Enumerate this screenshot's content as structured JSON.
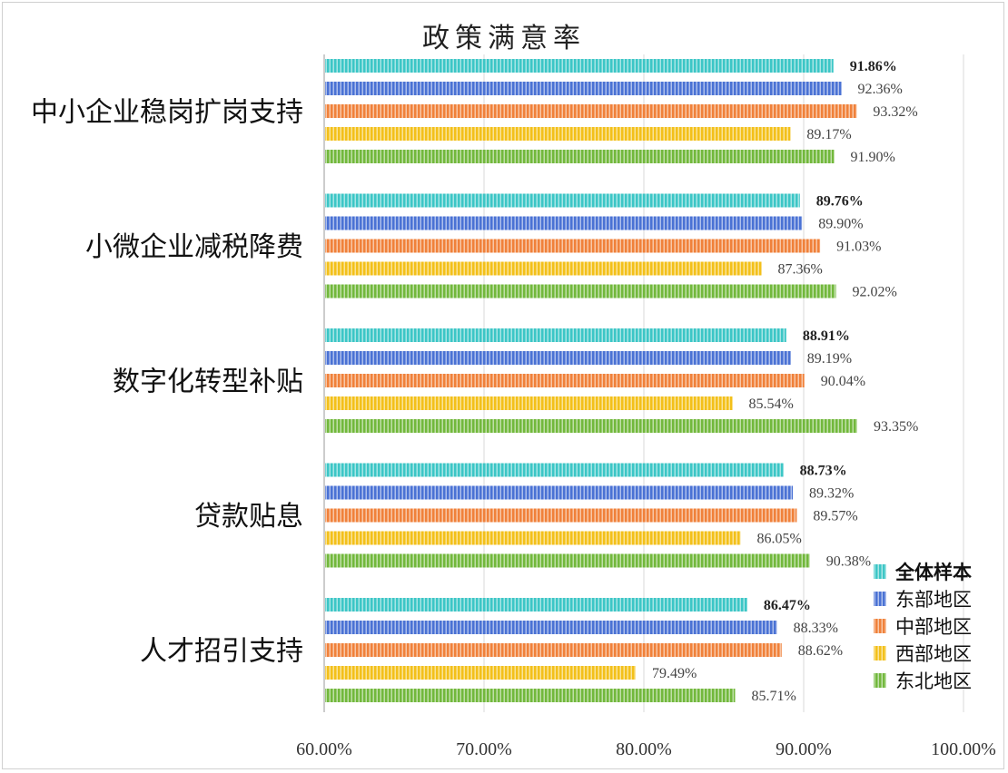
{
  "chart_data": {
    "type": "bar",
    "orientation": "horizontal",
    "title": "政策满意率",
    "categories": [
      "中小企业稳岗扩岗支持",
      "小微企业减税降费",
      "数字化转型补贴",
      "贷款贴息",
      "人才招引支持"
    ],
    "series": [
      {
        "name": "全体样本",
        "color": "#3cc6c6",
        "bold": true,
        "values": [
          91.86,
          89.76,
          88.91,
          88.73,
          86.47
        ]
      },
      {
        "name": "东部地区",
        "color": "#4a72d4",
        "bold": false,
        "values": [
          92.36,
          89.9,
          89.19,
          89.32,
          88.33
        ]
      },
      {
        "name": "中部地区",
        "color": "#f0813a",
        "bold": false,
        "values": [
          93.32,
          91.03,
          90.04,
          89.57,
          88.62
        ]
      },
      {
        "name": "西部地区",
        "color": "#f3c01a",
        "bold": false,
        "values": [
          89.17,
          87.36,
          85.54,
          86.05,
          79.49
        ]
      },
      {
        "name": "东北地区",
        "color": "#72b83c",
        "bold": false,
        "values": [
          91.9,
          92.02,
          93.35,
          90.38,
          85.71
        ]
      }
    ],
    "value_labels": [
      [
        "91.86%",
        "92.36%",
        "93.32%",
        "89.17%",
        "91.90%"
      ],
      [
        "89.76%",
        "89.90%",
        "91.03%",
        "87.36%",
        "92.02%"
      ],
      [
        "88.91%",
        "89.19%",
        "90.04%",
        "85.54%",
        "93.35%"
      ],
      [
        "88.73%",
        "89.32%",
        "89.57%",
        "86.05%",
        "90.38%"
      ],
      [
        "86.47%",
        "88.33%",
        "88.62%",
        "79.49%",
        "85.71%"
      ]
    ],
    "xlim": [
      60,
      100
    ],
    "xticks": [
      60,
      70,
      80,
      90,
      100
    ],
    "xtick_labels": [
      "60.00%",
      "70.00%",
      "80.00%",
      "90.00%",
      "100.00%"
    ],
    "xlabel": "",
    "ylabel": "",
    "grid": true,
    "legend_position": "bottom-right"
  }
}
